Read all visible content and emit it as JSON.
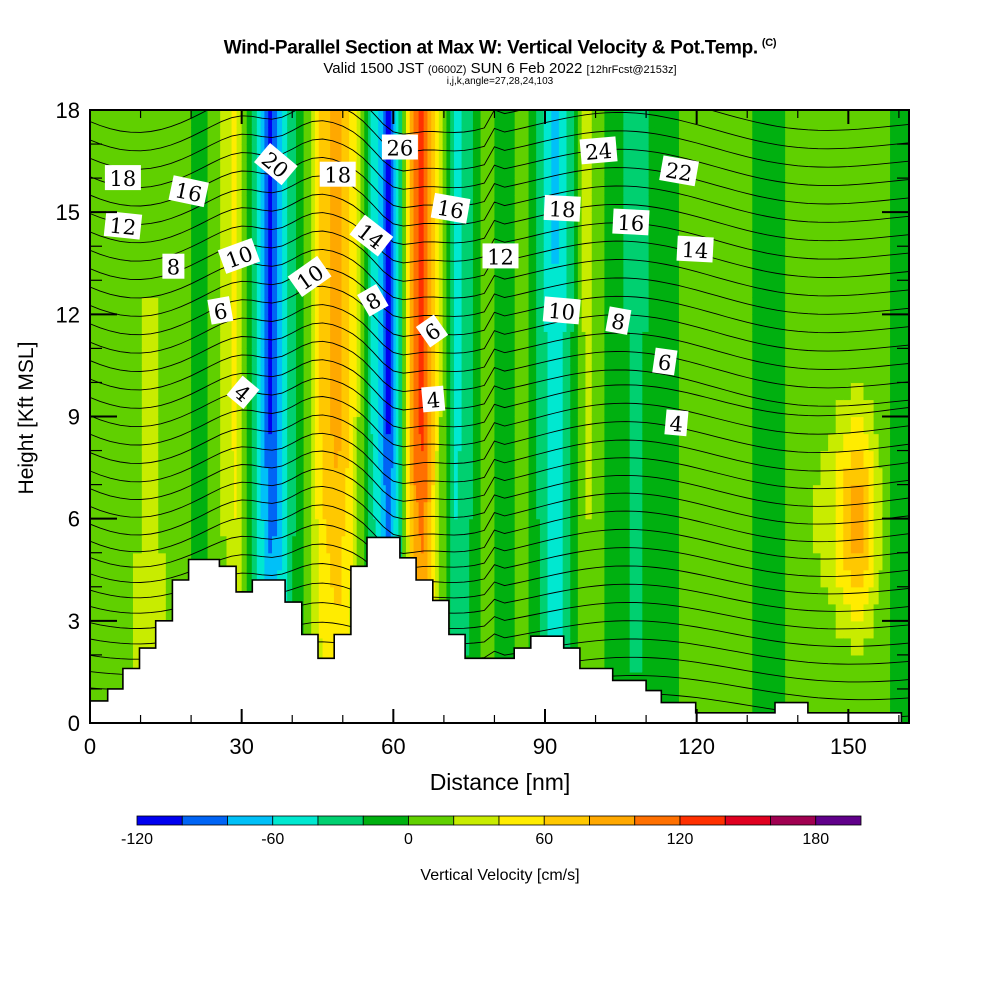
{
  "header": {
    "title": "Wind-Parallel Section at Max W: Vertical Velocity & Pot.Temp.",
    "copyright": "(C)",
    "valid_prefix": "Valid 1500 JST",
    "valid_utc": "(0600Z)",
    "valid_date": "SUN 6 Feb 2022",
    "forecast": "[12hrFcst@2153z]",
    "grid_info": "i,j,k,angle=27,28,24,103"
  },
  "chart_data": {
    "type": "heatmap",
    "title": "Wind-Parallel Section at Max W: Vertical Velocity & Pot.Temp.",
    "xlabel": "Distance [nm]",
    "ylabel": "Height [Kft MSL]",
    "xlim": [
      0,
      162
    ],
    "ylim": [
      0,
      18
    ],
    "xticks": [
      0,
      30,
      60,
      90,
      120,
      150
    ],
    "yticks": [
      0,
      3,
      6,
      9,
      12,
      15,
      18
    ],
    "colorbar": {
      "label": "Vertical Velocity [cm/s]",
      "boundaries": [
        -120,
        -100,
        -80,
        -60,
        -40,
        -20,
        0,
        20,
        40,
        60,
        80,
        100,
        120,
        140,
        160,
        180,
        200
      ],
      "tick_labels": [
        "-120",
        "-60",
        "0",
        "60",
        "120",
        "180"
      ],
      "colors": [
        "#0000f0",
        "#0064f5",
        "#00c0f8",
        "#00e8d0",
        "#00d070",
        "#00b010",
        "#60d000",
        "#c8ec00",
        "#ffec00",
        "#ffc800",
        "#ffa800",
        "#ff7000",
        "#ff3000",
        "#e00020",
        "#a00050",
        "#60008a"
      ]
    },
    "w_columns": [
      {
        "x": 0,
        "w": 10
      },
      {
        "x": 5,
        "w": 10
      },
      {
        "x": 12,
        "w": 30
      },
      {
        "x": 18,
        "w": 10
      },
      {
        "x": 22,
        "w": -10
      },
      {
        "x": 27,
        "w": 30
      },
      {
        "x": 29,
        "w": 50
      },
      {
        "x": 33,
        "w": -50
      },
      {
        "x": 36,
        "w": -110
      },
      {
        "x": 40,
        "w": -30
      },
      {
        "x": 43,
        "w": 10
      },
      {
        "x": 46,
        "w": 70
      },
      {
        "x": 49,
        "w": 90
      },
      {
        "x": 52,
        "w": 50
      },
      {
        "x": 55,
        "w": -30
      },
      {
        "x": 57,
        "w": -60
      },
      {
        "x": 59,
        "w": -110
      },
      {
        "x": 61,
        "w": -50
      },
      {
        "x": 64,
        "w": 110
      },
      {
        "x": 66,
        "w": 130
      },
      {
        "x": 69,
        "w": 30
      },
      {
        "x": 72,
        "w": -50
      },
      {
        "x": 75,
        "w": -30
      },
      {
        "x": 78,
        "w": 10
      },
      {
        "x": 82,
        "w": -10
      },
      {
        "x": 86,
        "w": 10
      },
      {
        "x": 89,
        "w": -30
      },
      {
        "x": 92,
        "w": -70
      },
      {
        "x": 95,
        "w": -30
      },
      {
        "x": 98,
        "w": 30
      },
      {
        "x": 103,
        "w": -10
      },
      {
        "x": 108,
        "w": -30
      },
      {
        "x": 113,
        "w": -10
      },
      {
        "x": 120,
        "w": 10
      },
      {
        "x": 127,
        "w": 10
      },
      {
        "x": 135,
        "w": -10
      },
      {
        "x": 140,
        "w": 10
      },
      {
        "x": 146,
        "w": 30
      },
      {
        "x": 152,
        "w": 100
      },
      {
        "x": 156,
        "w": 30
      },
      {
        "x": 159,
        "w": -10
      },
      {
        "x": 162,
        "w": -10
      }
    ],
    "terrain": [
      [
        0,
        0.65
      ],
      [
        3.5,
        0.65
      ],
      [
        3.5,
        1.0
      ],
      [
        6.5,
        1.0
      ],
      [
        6.5,
        1.6
      ],
      [
        9.8,
        1.6
      ],
      [
        9.8,
        2.2
      ],
      [
        13,
        2.2
      ],
      [
        13,
        3.0
      ],
      [
        16.3,
        3.0
      ],
      [
        16.3,
        4.2
      ],
      [
        19.5,
        4.2
      ],
      [
        19.5,
        4.8
      ],
      [
        25.6,
        4.8
      ],
      [
        25.6,
        4.6
      ],
      [
        28.9,
        4.6
      ],
      [
        28.9,
        3.85
      ],
      [
        32.1,
        3.85
      ],
      [
        32.1,
        4.2
      ],
      [
        38.6,
        4.2
      ],
      [
        38.6,
        3.55
      ],
      [
        41.9,
        3.55
      ],
      [
        41.9,
        2.6
      ],
      [
        45.1,
        2.6
      ],
      [
        45.1,
        1.9
      ],
      [
        48.3,
        1.9
      ],
      [
        48.3,
        2.6
      ],
      [
        51.6,
        2.6
      ],
      [
        51.6,
        4.6
      ],
      [
        54.8,
        4.6
      ],
      [
        54.8,
        5.45
      ],
      [
        61.3,
        5.45
      ],
      [
        61.3,
        4.85
      ],
      [
        64.5,
        4.85
      ],
      [
        64.5,
        4.2
      ],
      [
        67.8,
        4.2
      ],
      [
        67.8,
        3.6
      ],
      [
        71,
        3.6
      ],
      [
        71,
        2.6
      ],
      [
        74.2,
        2.6
      ],
      [
        74.2,
        1.9
      ],
      [
        83.9,
        1.9
      ],
      [
        83.9,
        2.2
      ],
      [
        87.2,
        2.2
      ],
      [
        87.2,
        2.55
      ],
      [
        93.7,
        2.55
      ],
      [
        93.7,
        2.2
      ],
      [
        96.9,
        2.2
      ],
      [
        96.9,
        1.6
      ],
      [
        103.4,
        1.6
      ],
      [
        103.4,
        1.25
      ],
      [
        110,
        1.25
      ],
      [
        110,
        0.95
      ],
      [
        113,
        0.95
      ],
      [
        113,
        0.6
      ],
      [
        119.8,
        0.6
      ],
      [
        119.8,
        0.3
      ],
      [
        135.5,
        0.3
      ],
      [
        135.5,
        0.6
      ],
      [
        142,
        0.6
      ],
      [
        142,
        0.3
      ],
      [
        160.5,
        0.3
      ],
      [
        160.5,
        0.0
      ]
    ],
    "contour_labels": [
      {
        "x": 6.5,
        "y": 16.0,
        "text": "18",
        "rot": 0
      },
      {
        "x": 19.5,
        "y": 15.6,
        "text": "16",
        "rot": 12
      },
      {
        "x": 6.5,
        "y": 14.6,
        "text": "12",
        "rot": 6
      },
      {
        "x": 16.5,
        "y": 13.4,
        "text": "8",
        "rot": 0
      },
      {
        "x": 29.5,
        "y": 13.7,
        "text": "10",
        "rot": -20
      },
      {
        "x": 25.8,
        "y": 12.1,
        "text": "6",
        "rot": -10
      },
      {
        "x": 30.2,
        "y": 9.7,
        "text": "4",
        "rot": 40
      },
      {
        "x": 36.7,
        "y": 16.4,
        "text": "20",
        "rot": 40
      },
      {
        "x": 49.0,
        "y": 16.1,
        "text": "18",
        "rot": 0
      },
      {
        "x": 43.5,
        "y": 13.1,
        "text": "10",
        "rot": -35
      },
      {
        "x": 55.6,
        "y": 14.3,
        "text": "14",
        "rot": 38
      },
      {
        "x": 56.0,
        "y": 12.4,
        "text": "8",
        "rot": -30
      },
      {
        "x": 61.3,
        "y": 16.9,
        "text": "26",
        "rot": 0
      },
      {
        "x": 71.3,
        "y": 15.1,
        "text": "16",
        "rot": 10
      },
      {
        "x": 67.7,
        "y": 11.5,
        "text": "6",
        "rot": -35
      },
      {
        "x": 67.9,
        "y": 9.5,
        "text": "4",
        "rot": -5
      },
      {
        "x": 81.2,
        "y": 13.7,
        "text": "12",
        "rot": 0
      },
      {
        "x": 100.6,
        "y": 16.8,
        "text": "24",
        "rot": -5
      },
      {
        "x": 93.4,
        "y": 15.1,
        "text": "18",
        "rot": 3
      },
      {
        "x": 107.0,
        "y": 14.7,
        "text": "16",
        "rot": 3
      },
      {
        "x": 93.3,
        "y": 12.1,
        "text": "10",
        "rot": 5
      },
      {
        "x": 104.5,
        "y": 11.8,
        "text": "8",
        "rot": 10
      },
      {
        "x": 116.5,
        "y": 16.2,
        "text": "22",
        "rot": 10
      },
      {
        "x": 119.7,
        "y": 13.9,
        "text": "14",
        "rot": 3
      },
      {
        "x": 113.7,
        "y": 10.6,
        "text": "6",
        "rot": 8
      },
      {
        "x": 116.0,
        "y": 8.8,
        "text": "4",
        "rot": 5
      }
    ]
  }
}
